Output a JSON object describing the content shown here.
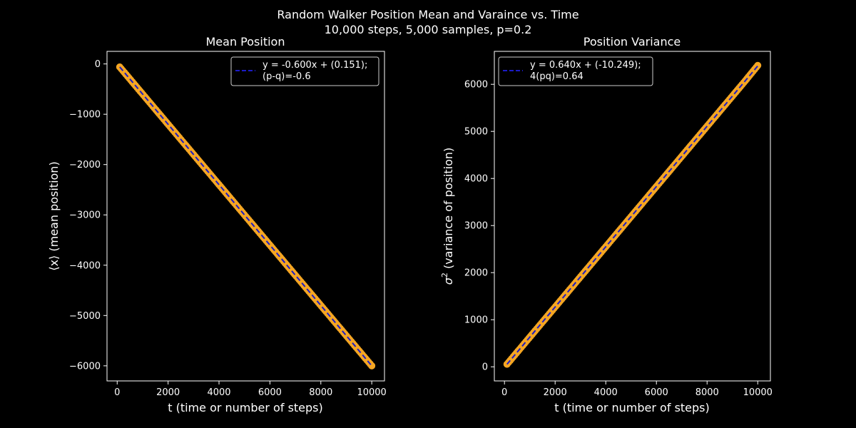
{
  "figure": {
    "title_line1": "Random Walker Position Mean and Varaince vs. Time",
    "title_line2": "10,000 steps, 5,000 samples, p=0.2"
  },
  "colors": {
    "background": "#000000",
    "axes": "#ffffff",
    "data": "#f5a623",
    "fit": "#1c1cc8"
  },
  "chart_data": [
    {
      "type": "scatter",
      "title": "Mean Position",
      "xlabel": "t (time or number of steps)",
      "ylabel": "⟨x⟩ (mean position)",
      "xlim": [
        -400,
        10500
      ],
      "ylim": [
        -6300,
        250
      ],
      "xticks": [
        0,
        2000,
        4000,
        6000,
        8000,
        10000
      ],
      "yticks": [
        0,
        -1000,
        -2000,
        -3000,
        -4000,
        -5000,
        -6000
      ],
      "grid": false,
      "legend_position": "upper right",
      "series": [
        {
          "name": "",
          "style": "scatter",
          "x": [
            100,
            500,
            1000,
            1500,
            2000,
            2500,
            3000,
            3500,
            4000,
            4500,
            5000,
            5500,
            6000,
            6500,
            7000,
            7500,
            8000,
            8500,
            9000,
            9500,
            10000
          ],
          "y": [
            -60,
            -300,
            -600,
            -900,
            -1200,
            -1500,
            -1800,
            -2100,
            -2400,
            -2700,
            -3000,
            -3300,
            -3600,
            -3900,
            -4200,
            -4500,
            -4800,
            -5100,
            -5400,
            -5700,
            -6000
          ]
        },
        {
          "name": "y = -0.600x + (0.151);",
          "name_line2": "(p-q)=-0.6",
          "style": "dashed-line",
          "slope": -0.6,
          "intercept": 0.151,
          "x_range": [
            100,
            10000
          ]
        }
      ]
    },
    {
      "type": "scatter",
      "title": "Position Variance",
      "xlabel": "t (time or number of steps)",
      "ylabel": "σ² (variance of position)",
      "ylabel_symbol": "σ",
      "ylabel_sup": "2",
      "ylabel_rest": " (variance of position)",
      "xlim": [
        -400,
        10500
      ],
      "ylim": [
        -300,
        6700
      ],
      "xticks": [
        0,
        2000,
        4000,
        6000,
        8000,
        10000
      ],
      "yticks": [
        0,
        1000,
        2000,
        3000,
        4000,
        5000,
        6000
      ],
      "grid": false,
      "legend_position": "upper left",
      "series": [
        {
          "name": "",
          "style": "scatter",
          "x": [
            100,
            500,
            1000,
            1500,
            2000,
            2500,
            3000,
            3500,
            4000,
            4500,
            5000,
            5500,
            6000,
            6500,
            7000,
            7500,
            8000,
            8500,
            9000,
            9500,
            10000
          ],
          "y": [
            54,
            310,
            630,
            950,
            1270,
            1590,
            1910,
            2230,
            2550,
            2870,
            3190,
            3510,
            3830,
            4150,
            4470,
            4790,
            5110,
            5430,
            5750,
            6070,
            6400
          ]
        },
        {
          "name": "y = 0.640x + (-10.249);",
          "name_line2": "4(pq)=0.64",
          "style": "dashed-line",
          "slope": 0.64,
          "intercept": -10.249,
          "x_range": [
            100,
            10000
          ]
        }
      ]
    }
  ]
}
